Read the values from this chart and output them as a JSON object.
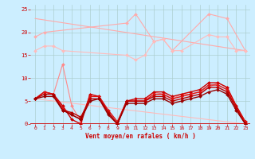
{
  "background_color": "#cceeff",
  "grid_color": "#aacccc",
  "xlabel": "Vent moyen/en rafales ( km/h )",
  "xlim": [
    -0.5,
    23.5
  ],
  "ylim": [
    0,
    26
  ],
  "yticks": [
    0,
    5,
    10,
    15,
    20,
    25
  ],
  "xticks": [
    0,
    1,
    2,
    3,
    4,
    5,
    6,
    7,
    8,
    9,
    10,
    11,
    12,
    13,
    14,
    15,
    16,
    17,
    18,
    19,
    20,
    21,
    22,
    23
  ],
  "lines": [
    {
      "x": [
        0,
        23
      ],
      "y": [
        23,
        16
      ],
      "color": "#ffaaaa",
      "linewidth": 0.8,
      "marker": null
    },
    {
      "x": [
        0,
        1,
        10,
        11,
        13,
        14,
        15,
        19,
        21,
        23
      ],
      "y": [
        19,
        20,
        22,
        24,
        18,
        18.5,
        16,
        24,
        23,
        16
      ],
      "color": "#ffaaaa",
      "linewidth": 0.8,
      "marker": "D",
      "markersize": 2
    },
    {
      "x": [
        0,
        1,
        2,
        3,
        10,
        11,
        12,
        13,
        14,
        15,
        16,
        19,
        20,
        21,
        22,
        23
      ],
      "y": [
        16,
        17,
        17,
        16,
        15,
        14,
        15,
        18,
        18.5,
        16,
        16,
        19.5,
        19,
        19,
        16,
        16
      ],
      "color": "#ffbbbb",
      "linewidth": 0.8,
      "marker": "D",
      "markersize": 2
    },
    {
      "x": [
        0,
        23
      ],
      "y": [
        5.5,
        0
      ],
      "color": "#ffbbbb",
      "linewidth": 0.8,
      "marker": null
    },
    {
      "x": [
        0,
        1,
        2,
        3,
        4,
        5,
        6,
        7,
        8,
        9,
        10,
        11,
        12,
        13,
        14,
        15,
        16,
        17,
        18,
        19,
        20,
        21,
        22,
        23
      ],
      "y": [
        5.5,
        7,
        6.5,
        13,
        4,
        0.5,
        6.5,
        6,
        2.5,
        0,
        5,
        5,
        5,
        7,
        6.5,
        5.5,
        6.5,
        6.5,
        7,
        8,
        9,
        8,
        4,
        0.5
      ],
      "color": "#ff8888",
      "linewidth": 0.8,
      "marker": "D",
      "markersize": 2
    },
    {
      "x": [
        0,
        1,
        2,
        3,
        4,
        5,
        6,
        7,
        8,
        9,
        10,
        11,
        12,
        13,
        14,
        15,
        16,
        17,
        18,
        19,
        20,
        21,
        22,
        23
      ],
      "y": [
        5.5,
        7,
        6.5,
        4,
        1,
        0,
        6.5,
        6,
        2.5,
        0,
        5,
        5.5,
        5.5,
        7,
        7,
        6,
        6.5,
        7,
        7.5,
        9,
        9,
        8,
        4,
        0.5
      ],
      "color": "#cc0000",
      "linewidth": 1.0,
      "marker": "D",
      "markersize": 2
    },
    {
      "x": [
        0,
        1,
        2,
        3,
        4,
        5,
        6,
        7,
        8,
        9,
        10,
        11,
        12,
        13,
        14,
        15,
        16,
        17,
        18,
        19,
        20,
        21,
        22,
        23
      ],
      "y": [
        5.5,
        7,
        6.5,
        3.5,
        2,
        1,
        6,
        6,
        3,
        0.5,
        5,
        5,
        5,
        6.5,
        6.5,
        5.5,
        6,
        6.5,
        7,
        8.5,
        8.5,
        7.5,
        3.5,
        0.5
      ],
      "color": "#dd1111",
      "linewidth": 1.0,
      "marker": "D",
      "markersize": 2
    },
    {
      "x": [
        0,
        1,
        2,
        3,
        4,
        5,
        6,
        7,
        8,
        9,
        10,
        11,
        12,
        13,
        14,
        15,
        16,
        17,
        18,
        19,
        20,
        21,
        22,
        23
      ],
      "y": [
        5.5,
        6.5,
        6.5,
        3,
        2.5,
        1.5,
        5.5,
        5.5,
        2.5,
        0,
        5,
        5,
        5,
        6,
        6,
        5,
        5.5,
        6,
        6.5,
        8,
        8,
        7,
        3.5,
        0
      ],
      "color": "#bb0000",
      "linewidth": 1.0,
      "marker": "D",
      "markersize": 2
    },
    {
      "x": [
        0,
        1,
        2,
        3,
        4,
        5,
        6,
        7,
        8,
        9,
        10,
        11,
        12,
        13,
        14,
        15,
        16,
        17,
        18,
        19,
        20,
        21,
        22,
        23
      ],
      "y": [
        5.5,
        6,
        6,
        3,
        2,
        1,
        5,
        5.5,
        2,
        0,
        4.5,
        4.5,
        4.5,
        5.5,
        5.5,
        4.5,
        5,
        5.5,
        6,
        7,
        7.5,
        6.5,
        3,
        0
      ],
      "color": "#990000",
      "linewidth": 1.0,
      "marker": "D",
      "markersize": 2
    }
  ]
}
